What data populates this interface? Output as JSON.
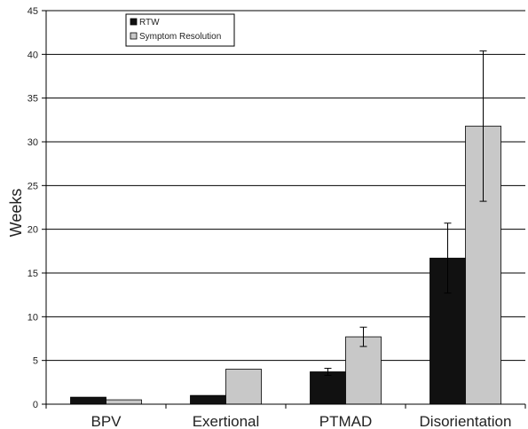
{
  "chart_data": {
    "type": "bar",
    "title": "",
    "xlabel": "",
    "ylabel": "Weeks",
    "ylim": [
      0,
      45
    ],
    "yticks": [
      0,
      5,
      10,
      15,
      20,
      25,
      30,
      35,
      40,
      45
    ],
    "grid": true,
    "legend_position": "top-left",
    "categories": [
      "BPV",
      "Exertional",
      "PTMAD",
      "Disorientation"
    ],
    "series": [
      {
        "name": "RTW",
        "color": "#111111",
        "values": [
          0.8,
          1.0,
          3.7,
          16.7
        ],
        "error": [
          null,
          null,
          0.4,
          4.0
        ]
      },
      {
        "name": "Symptom Resolution",
        "color": "#c8c8c8",
        "values": [
          0.5,
          4.0,
          7.7,
          31.8
        ],
        "error": [
          null,
          null,
          1.1,
          8.6
        ]
      }
    ]
  }
}
